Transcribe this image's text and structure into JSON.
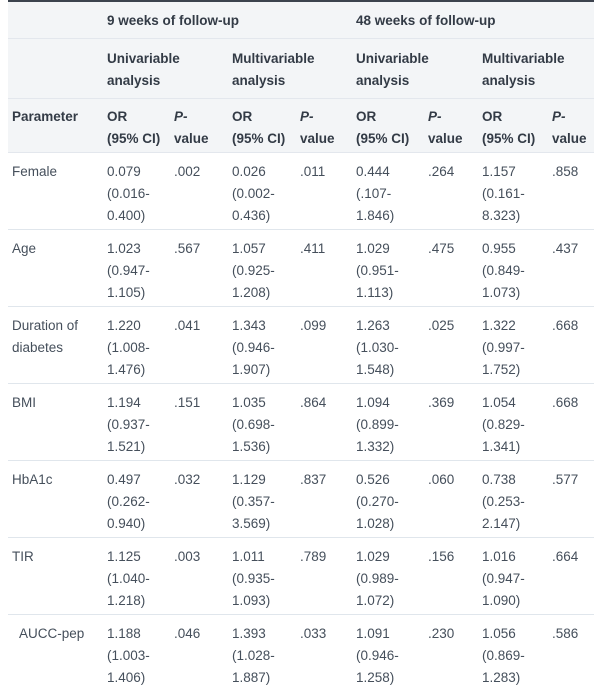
{
  "table": {
    "header": {
      "group_9wk": "9 weeks of follow-up",
      "group_48wk": "48 weeks of follow-up",
      "univariable": "Univariable analysis",
      "multivariable": "Multivariable analysis",
      "parameter": "Parameter",
      "or_line1": "OR",
      "or_line2": "(95% CI)",
      "p_line1": "P-",
      "p_line2": "value"
    },
    "rows": [
      {
        "parameter": "Female",
        "indent": false,
        "blocks": [
          {
            "or": "0.079",
            "ci": "(0.016-0.400)",
            "p": ".002"
          },
          {
            "or": "0.026",
            "ci": "(0.002-0.436)",
            "p": ".011"
          },
          {
            "or": "0.444",
            "ci": "(.107-1.846)",
            "p": ".264"
          },
          {
            "or": "1.157",
            "ci": "(0.161-8.323)",
            "p": ".858"
          }
        ]
      },
      {
        "parameter": "Age",
        "indent": false,
        "blocks": [
          {
            "or": "1.023",
            "ci": "(0.947-1.105)",
            "p": ".567"
          },
          {
            "or": "1.057",
            "ci": "(0.925-1.208)",
            "p": ".411"
          },
          {
            "or": "1.029",
            "ci": "(0.951-1.113)",
            "p": ".475"
          },
          {
            "or": "0.955",
            "ci": "(0.849-1.073)",
            "p": ".437"
          }
        ]
      },
      {
        "parameter": "Duration of diabetes",
        "indent": false,
        "blocks": [
          {
            "or": "1.220",
            "ci": "(1.008-1.476)",
            "p": ".041"
          },
          {
            "or": "1.343",
            "ci": "(0.946-1.907)",
            "p": ".099"
          },
          {
            "or": "1.263",
            "ci": "(1.030-1.548)",
            "p": ".025"
          },
          {
            "or": "1.322",
            "ci": "(0.997-1.752)",
            "p": ".668"
          }
        ]
      },
      {
        "parameter": "BMI",
        "indent": false,
        "blocks": [
          {
            "or": "1.194",
            "ci": "(0.937-1.521)",
            "p": ".151"
          },
          {
            "or": "1.035",
            "ci": "(0.698-1.536)",
            "p": ".864"
          },
          {
            "or": "1.094",
            "ci": "(0.899-1.332)",
            "p": ".369"
          },
          {
            "or": "1.054",
            "ci": "(0.829-1.341)",
            "p": ".668"
          }
        ]
      },
      {
        "parameter": "HbA1c",
        "indent": false,
        "blocks": [
          {
            "or": "0.497",
            "ci": "(0.262-0.940)",
            "p": ".032"
          },
          {
            "or": "1.129",
            "ci": "(0.357-3.569)",
            "p": ".837"
          },
          {
            "or": "0.526",
            "ci": "(0.270-1.028)",
            "p": ".060"
          },
          {
            "or": "0.738",
            "ci": "(0.253-2.147)",
            "p": ".577"
          }
        ]
      },
      {
        "parameter": "TIR",
        "indent": false,
        "blocks": [
          {
            "or": "1.125",
            "ci": "(1.040-1.218)",
            "p": ".003"
          },
          {
            "or": "1.011",
            "ci": "(0.935-1.093)",
            "p": ".789"
          },
          {
            "or": "1.029",
            "ci": "(0.989-1.072)",
            "p": ".156"
          },
          {
            "or": "1.016",
            "ci": "(0.947-1.090)",
            "p": ".664"
          }
        ]
      },
      {
        "parameter": "AUCC-pep",
        "indent": true,
        "blocks": [
          {
            "or": "1.188",
            "ci": "(1.003-1.406)",
            "p": ".046"
          },
          {
            "or": "1.393",
            "ci": "(1.028-1.887)",
            "p": ".033"
          },
          {
            "or": "1.091",
            "ci": "(0.946-1.258)",
            "p": ".230"
          },
          {
            "or": "1.056",
            "ci": "(0.869-1.283)",
            "p": ".586"
          }
        ]
      }
    ]
  },
  "colors": {
    "top_border": "#3c434e",
    "header_background": "#f3f5f7",
    "row_divider": "#e0e6ec",
    "header_text": "#333b46",
    "body_text": "#454f5b"
  }
}
